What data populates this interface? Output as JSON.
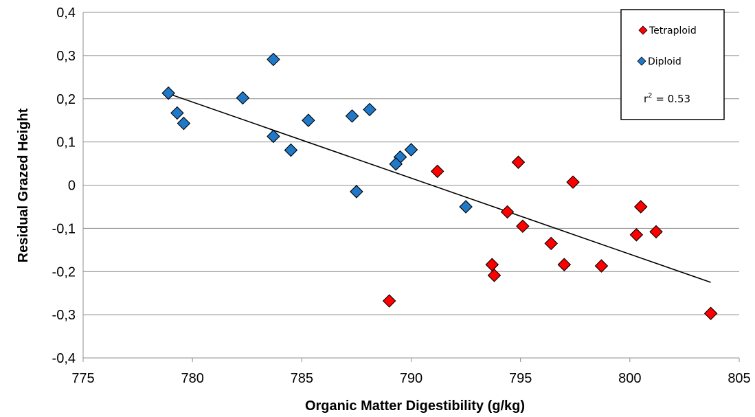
{
  "chart_data": {
    "type": "scatter",
    "title": "",
    "xlabel": "Organic Matter Digestibility (g/kg)",
    "ylabel": "Residual Grazed Height",
    "xlim": [
      775,
      805
    ],
    "ylim": [
      -0.4,
      0.4
    ],
    "x_ticks": [
      "775",
      "780",
      "785",
      "790",
      "795",
      "800",
      "805"
    ],
    "y_ticks": [
      "-0,4",
      "-0,3",
      "-0,2",
      "-0,1",
      "0",
      "0,1",
      "0,2",
      "0,3",
      "0,4"
    ],
    "grid": "horizontal",
    "legend_position": "top-right",
    "series": [
      {
        "name": "Tetraploid",
        "color": "#ff0000",
        "marker": "diamond",
        "points": [
          [
            791.2,
            0.032
          ],
          [
            794.9,
            0.053
          ],
          [
            797.4,
            0.007
          ],
          [
            800.5,
            -0.05
          ],
          [
            794.4,
            -0.062
          ],
          [
            795.1,
            -0.095
          ],
          [
            800.3,
            -0.115
          ],
          [
            801.2,
            -0.108
          ],
          [
            796.4,
            -0.135
          ],
          [
            793.7,
            -0.184
          ],
          [
            797.0,
            -0.184
          ],
          [
            798.7,
            -0.187
          ],
          [
            793.8,
            -0.209
          ],
          [
            789.0,
            -0.268
          ],
          [
            803.7,
            -0.297
          ]
        ]
      },
      {
        "name": "Diploid",
        "color": "#1f78c8",
        "marker": "diamond",
        "points": [
          [
            778.9,
            0.213
          ],
          [
            779.3,
            0.167
          ],
          [
            779.6,
            0.143
          ],
          [
            783.7,
            0.291
          ],
          [
            782.3,
            0.202
          ],
          [
            783.7,
            0.113
          ],
          [
            784.5,
            0.081
          ],
          [
            785.3,
            0.15
          ],
          [
            787.3,
            0.16
          ],
          [
            788.1,
            0.175
          ],
          [
            790.0,
            0.082
          ],
          [
            789.5,
            0.065
          ],
          [
            789.3,
            0.049
          ],
          [
            787.5,
            -0.015
          ],
          [
            792.5,
            -0.05
          ]
        ]
      }
    ],
    "trendline": {
      "x": [
        779.0,
        803.7
      ],
      "y": [
        0.21,
        -0.225
      ]
    },
    "annotation": {
      "prefix": "r",
      "sup": "2",
      "suffix": " = 0.53"
    }
  }
}
